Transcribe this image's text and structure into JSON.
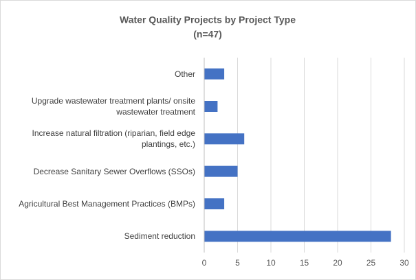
{
  "chart_data": {
    "type": "bar",
    "orientation": "horizontal",
    "title": "Water Quality Projects by Project Type",
    "subtitle": "(n=47)",
    "categories": [
      "Other",
      "Upgrade wastewater treatment plants/ onsite wastewater treatment",
      "Increase natural filtration (riparian, field edge plantings, etc.)",
      "Decrease Sanitary Sewer Overflows (SSOs)",
      "Agricultural Best Management Practices (BMPs)",
      "Sediment reduction"
    ],
    "values": [
      3,
      2,
      6,
      5,
      3,
      28
    ],
    "color": "#4472c4",
    "xlim": [
      0,
      30
    ],
    "xticks": [
      0,
      5,
      10,
      15,
      20,
      25,
      30
    ],
    "grid": true
  }
}
